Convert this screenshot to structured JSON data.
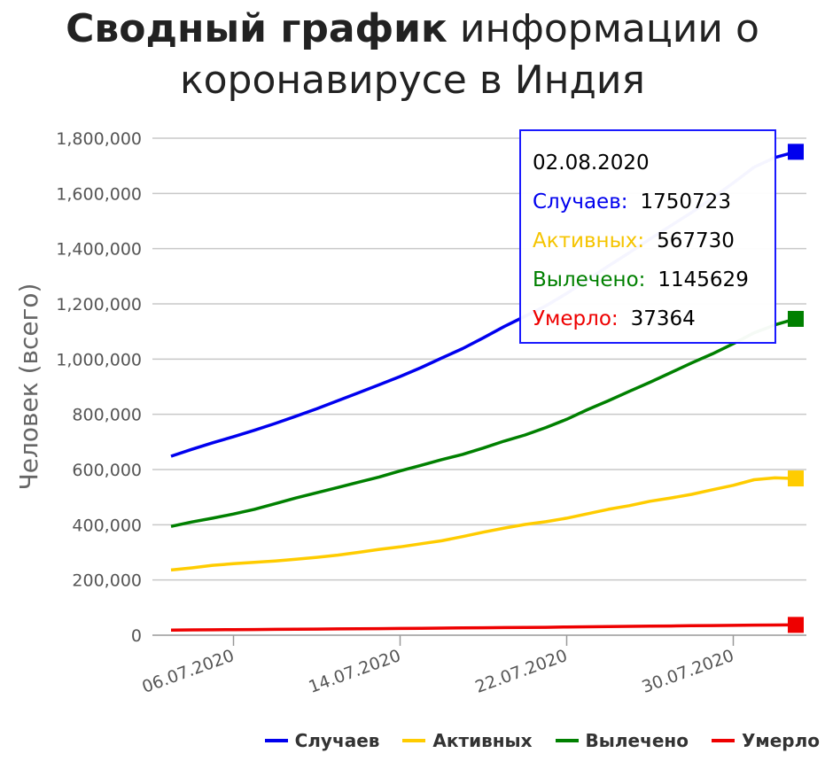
{
  "title_bold": "Сводный график",
  "title_rest_line1": "информации о",
  "title_line2": "коронавирусе в Индия",
  "chart_data": {
    "type": "line",
    "ylabel": "Человек (всего)",
    "ylim": [
      0,
      1800000
    ],
    "yticks": [
      "0",
      "200,000",
      "400,000",
      "600,000",
      "800,000",
      "1,000,000",
      "1,200,000",
      "1,400,000",
      "1,600,000",
      "1,800,000"
    ],
    "xticks": [
      "06.07.2020",
      "14.07.2020",
      "22.07.2020",
      "30.07.2020"
    ],
    "grid": true,
    "legend_position": "bottom-right",
    "x": [
      "03.07.2020",
      "04.07.2020",
      "05.07.2020",
      "06.07.2020",
      "07.07.2020",
      "08.07.2020",
      "09.07.2020",
      "10.07.2020",
      "11.07.2020",
      "12.07.2020",
      "13.07.2020",
      "14.07.2020",
      "15.07.2020",
      "16.07.2020",
      "17.07.2020",
      "18.07.2020",
      "19.07.2020",
      "20.07.2020",
      "21.07.2020",
      "22.07.2020",
      "23.07.2020",
      "24.07.2020",
      "25.07.2020",
      "26.07.2020",
      "27.07.2020",
      "28.07.2020",
      "29.07.2020",
      "30.07.2020",
      "31.07.2020",
      "01.08.2020",
      "02.08.2020"
    ],
    "series": [
      {
        "name": "Случаев",
        "color": "#0000ee",
        "values": [
          648000,
          673000,
          697000,
          719000,
          742000,
          767000,
          793000,
          820000,
          849000,
          878000,
          907000,
          937000,
          969000,
          1004000,
          1038000,
          1077000,
          1118000,
          1155000,
          1193000,
          1238000,
          1287000,
          1337000,
          1385000,
          1435000,
          1483000,
          1531000,
          1583000,
          1638000,
          1695000,
          1730000,
          1750723
        ]
      },
      {
        "name": "Активных",
        "color": "#ffcc00",
        "values": [
          236000,
          244000,
          253000,
          259000,
          264000,
          269000,
          275000,
          282000,
          290000,
          300000,
          311000,
          320000,
          331000,
          342000,
          357000,
          373000,
          388000,
          401000,
          411000,
          424000,
          440000,
          456000,
          469000,
          485000,
          497000,
          510000,
          527000,
          543000,
          563000,
          570000,
          567730
        ]
      },
      {
        "name": "Вылечено",
        "color": "#008000",
        "values": [
          394000,
          410000,
          424000,
          439000,
          456000,
          476000,
          497000,
          516000,
          535000,
          554000,
          573000,
          595000,
          615000,
          636000,
          655000,
          678000,
          703000,
          725000,
          752000,
          782000,
          817000,
          849000,
          883000,
          916000,
          951000,
          986000,
          1019000,
          1056000,
          1095000,
          1124000,
          1145629
        ]
      },
      {
        "name": "Умерло",
        "color": "#ee0000",
        "values": [
          18600,
          19300,
          19700,
          20200,
          20600,
          21100,
          21600,
          22100,
          22700,
          23200,
          23700,
          24300,
          24900,
          25600,
          26300,
          26800,
          27500,
          28100,
          28700,
          29900,
          30600,
          31400,
          32100,
          32800,
          33400,
          34200,
          35000,
          35700,
          36500,
          37000,
          37364
        ]
      }
    ],
    "tooltip": {
      "date": "02.08.2020",
      "rows": [
        {
          "label": "Случаев:",
          "value": "1750723",
          "color": "#0000ee"
        },
        {
          "label": "Активных:",
          "value": "567730",
          "color": "#ffcc00"
        },
        {
          "label": "Вылечено:",
          "value": "1145629",
          "color": "#008000"
        },
        {
          "label": "Умерло:",
          "value": "37364",
          "color": "#ee0000"
        }
      ]
    }
  }
}
